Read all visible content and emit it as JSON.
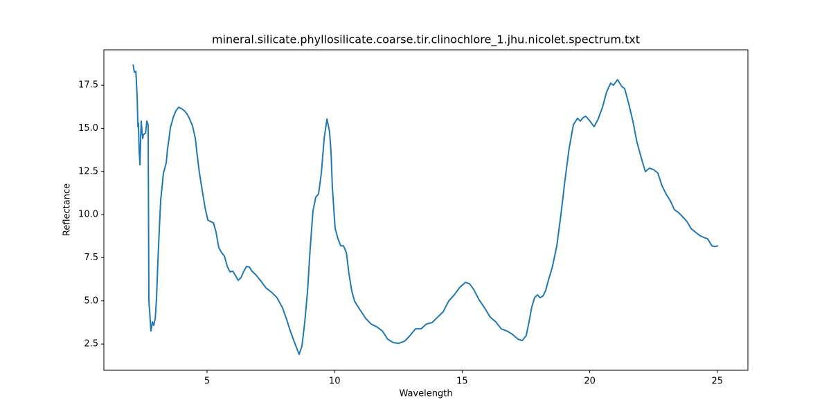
{
  "chart_data": {
    "type": "line",
    "title": "mineral.silicate.phyllosilicate.coarse.tir.clinochlore_1.jhu.nicolet.spectrum.txt",
    "xlabel": "Wavelength",
    "ylabel": "Reflectance",
    "color": "#1f77b4",
    "xlim": [
      0.955,
      26.2
    ],
    "ylim": [
      0.98,
      19.55
    ],
    "xticks": [
      5,
      10,
      15,
      20,
      25
    ],
    "yticks": [
      2.5,
      {
        "value": 5,
        "label": "5.0"
      },
      7.5,
      {
        "value": 10,
        "label": "10.0"
      },
      12.5,
      {
        "value": 15,
        "label": "15.0"
      },
      17.5
    ],
    "x": [
      2.1,
      2.15,
      2.21,
      2.23,
      2.26,
      2.29,
      2.31,
      2.34,
      2.37,
      2.4,
      2.42,
      2.45,
      2.48,
      2.5,
      2.59,
      2.64,
      2.69,
      2.72,
      2.75,
      2.8,
      2.86,
      2.91,
      2.97,
      3.02,
      3.07,
      3.13,
      3.18,
      3.24,
      3.29,
      3.35,
      3.4,
      3.45,
      3.51,
      3.56,
      3.67,
      3.78,
      3.89,
      4.0,
      4.11,
      4.22,
      4.32,
      4.43,
      4.54,
      4.6,
      4.7,
      4.81,
      4.92,
      5.03,
      5.14,
      5.25,
      5.35,
      5.46,
      5.57,
      5.68,
      5.79,
      5.9,
      6.01,
      6.11,
      6.22,
      6.33,
      6.44,
      6.55,
      6.66,
      6.76,
      6.93,
      7.09,
      7.31,
      7.52,
      7.74,
      7.96,
      8.12,
      8.28,
      8.45,
      8.61,
      8.72,
      8.83,
      8.94,
      9.04,
      9.15,
      9.26,
      9.37,
      9.48,
      9.59,
      9.7,
      9.8,
      9.86,
      9.91,
      10.02,
      10.13,
      10.24,
      10.35,
      10.46,
      10.56,
      10.67,
      10.78,
      11.0,
      11.22,
      11.43,
      11.65,
      11.87,
      12.08,
      12.3,
      12.52,
      12.74,
      12.95,
      13.17,
      13.39,
      13.6,
      13.82,
      14.04,
      14.26,
      14.47,
      14.69,
      14.91,
      15.13,
      15.29,
      15.45,
      15.66,
      15.88,
      16.1,
      16.32,
      16.53,
      16.75,
      16.97,
      17.19,
      17.35,
      17.51,
      17.62,
      17.73,
      17.84,
      17.95,
      18.05,
      18.16,
      18.27,
      18.38,
      18.54,
      18.71,
      18.87,
      19.03,
      19.19,
      19.36,
      19.52,
      19.63,
      19.74,
      19.85,
      20.01,
      20.17,
      20.33,
      20.5,
      20.66,
      20.82,
      20.93,
      21.09,
      21.26,
      21.37,
      21.53,
      21.69,
      21.85,
      22.02,
      22.18,
      22.34,
      22.5,
      22.67,
      22.83,
      22.99,
      23.16,
      23.32,
      23.48,
      23.64,
      23.81,
      23.97,
      24.13,
      24.3,
      24.46,
      24.62,
      24.79,
      24.9,
      25.03
    ],
    "values": [
      18.7,
      18.26,
      18.3,
      17.7,
      16.82,
      15.09,
      15.29,
      13.61,
      12.89,
      14.62,
      15.42,
      14.82,
      14.41,
      14.62,
      14.74,
      15.42,
      15.21,
      4.99,
      4.38,
      3.26,
      3.78,
      3.58,
      3.98,
      5.19,
      7.19,
      9.2,
      10.8,
      11.68,
      12.41,
      12.73,
      13.01,
      13.81,
      14.41,
      15.02,
      15.62,
      16.02,
      16.22,
      16.14,
      16.02,
      15.82,
      15.54,
      15.14,
      14.41,
      13.61,
      12.41,
      11.41,
      10.41,
      9.68,
      9.6,
      9.52,
      9.0,
      8.08,
      7.8,
      7.6,
      7.0,
      6.68,
      6.72,
      6.48,
      6.19,
      6.35,
      6.72,
      7.0,
      6.96,
      6.72,
      6.48,
      6.19,
      5.75,
      5.51,
      5.19,
      4.59,
      3.91,
      3.18,
      2.5,
      1.9,
      2.38,
      3.78,
      5.59,
      7.99,
      10.2,
      11.01,
      11.2,
      12.41,
      14.41,
      15.54,
      14.82,
      13.61,
      11.61,
      9.2,
      8.6,
      8.19,
      8.19,
      7.8,
      6.59,
      5.59,
      4.99,
      4.47,
      3.98,
      3.66,
      3.5,
      3.26,
      2.78,
      2.58,
      2.54,
      2.66,
      2.98,
      3.38,
      3.38,
      3.66,
      3.74,
      4.06,
      4.38,
      4.99,
      5.35,
      5.79,
      6.07,
      5.99,
      5.67,
      5.07,
      4.59,
      4.06,
      3.78,
      3.38,
      3.26,
      3.06,
      2.78,
      2.7,
      2.98,
      3.78,
      4.66,
      5.19,
      5.35,
      5.19,
      5.27,
      5.59,
      6.19,
      7.0,
      8.19,
      10.0,
      12.0,
      13.81,
      15.21,
      15.58,
      15.42,
      15.62,
      15.7,
      15.42,
      15.09,
      15.54,
      16.22,
      17.1,
      17.62,
      17.5,
      17.82,
      17.42,
      17.3,
      16.42,
      15.42,
      14.21,
      13.29,
      12.49,
      12.69,
      12.61,
      12.41,
      11.68,
      11.2,
      10.8,
      10.28,
      10.12,
      9.88,
      9.6,
      9.2,
      9.0,
      8.8,
      8.68,
      8.6,
      8.19,
      8.15,
      8.19
    ]
  }
}
